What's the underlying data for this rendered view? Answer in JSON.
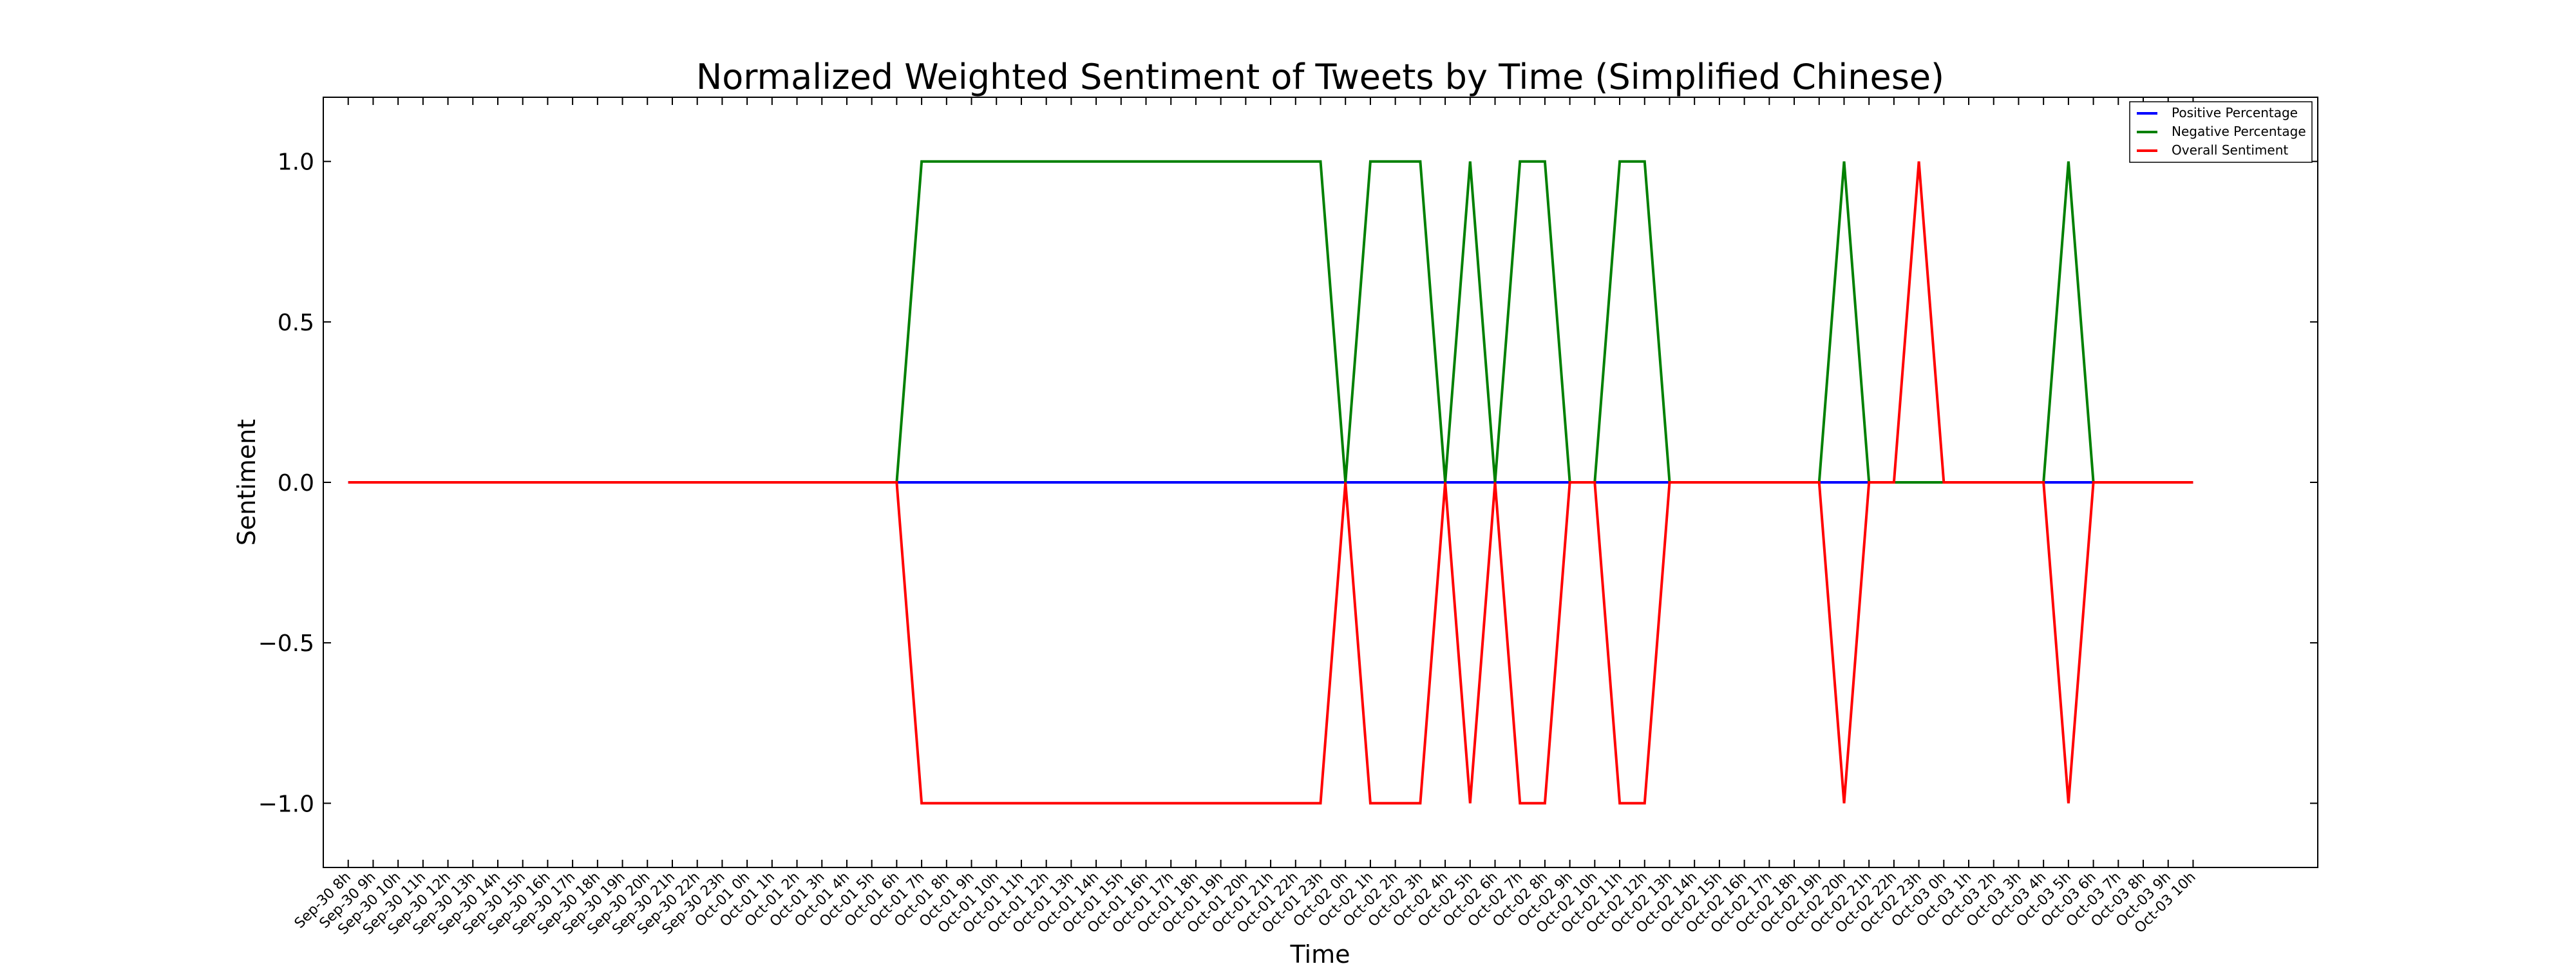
{
  "chart_data": {
    "type": "line",
    "title": "Normalized Weighted Sentiment of Tweets by Time (Simplified Chinese)",
    "xlabel": "Time",
    "ylabel": "Sentiment",
    "ylim": [
      -1.2,
      1.2
    ],
    "yticks": [
      -1.0,
      -0.5,
      0.0,
      0.5,
      1.0
    ],
    "ytick_labels": [
      "−1.0",
      "−0.5",
      "0.0",
      "0.5",
      "1.0"
    ],
    "xlim": [
      -1,
      79
    ],
    "grid": false,
    "legend_position": "top-right",
    "categories": [
      "Sep-30 8h",
      "Sep-30 9h",
      "Sep-30 10h",
      "Sep-30 11h",
      "Sep-30 12h",
      "Sep-30 13h",
      "Sep-30 14h",
      "Sep-30 15h",
      "Sep-30 16h",
      "Sep-30 17h",
      "Sep-30 18h",
      "Sep-30 19h",
      "Sep-30 20h",
      "Sep-30 21h",
      "Sep-30 22h",
      "Sep-30 23h",
      "Oct-01 0h",
      "Oct-01 1h",
      "Oct-01 2h",
      "Oct-01 3h",
      "Oct-01 4h",
      "Oct-01 5h",
      "Oct-01 6h",
      "Oct-01 7h",
      "Oct-01 8h",
      "Oct-01 9h",
      "Oct-01 10h",
      "Oct-01 11h",
      "Oct-01 12h",
      "Oct-01 13h",
      "Oct-01 14h",
      "Oct-01 15h",
      "Oct-01 16h",
      "Oct-01 17h",
      "Oct-01 18h",
      "Oct-01 19h",
      "Oct-01 20h",
      "Oct-01 21h",
      "Oct-01 22h",
      "Oct-01 23h",
      "Oct-02 0h",
      "Oct-02 1h",
      "Oct-02 2h",
      "Oct-02 3h",
      "Oct-02 4h",
      "Oct-02 5h",
      "Oct-02 6h",
      "Oct-02 7h",
      "Oct-02 8h",
      "Oct-02 9h",
      "Oct-02 10h",
      "Oct-02 11h",
      "Oct-02 12h",
      "Oct-02 13h",
      "Oct-02 14h",
      "Oct-02 15h",
      "Oct-02 16h",
      "Oct-02 17h",
      "Oct-02 18h",
      "Oct-02 19h",
      "Oct-02 20h",
      "Oct-02 21h",
      "Oct-02 22h",
      "Oct-02 23h",
      "Oct-03 0h",
      "Oct-03 1h",
      "Oct-03 2h",
      "Oct-03 3h",
      "Oct-03 4h",
      "Oct-03 5h",
      "Oct-03 6h",
      "Oct-03 7h",
      "Oct-03 8h",
      "Oct-03 9h",
      "Oct-03 10h"
    ],
    "series": [
      {
        "name": "Positive Percentage",
        "color": "#0000ff",
        "x": [
          0,
          74
        ],
        "values": [
          0,
          0
        ]
      },
      {
        "name": "Negative Percentage",
        "color": "#008000",
        "x": [
          22,
          23,
          39,
          40,
          41,
          43,
          44,
          45,
          46,
          47,
          48,
          49,
          50,
          51,
          52,
          53,
          59,
          60,
          61,
          62,
          63,
          64,
          68,
          69,
          70
        ],
        "values": [
          0,
          1,
          1,
          0,
          1,
          1,
          0,
          1,
          0,
          1,
          1,
          0,
          0,
          1,
          1,
          0,
          0,
          1,
          0,
          0,
          0,
          0,
          0,
          1,
          0
        ]
      },
      {
        "name": "Overall Sentiment",
        "color": "#ff0000",
        "x": [
          0,
          22,
          23,
          39,
          40,
          41,
          43,
          44,
          45,
          46,
          47,
          48,
          49,
          50,
          51,
          52,
          53,
          59,
          60,
          61,
          62,
          63,
          64,
          68,
          69,
          70,
          74
        ],
        "values": [
          0,
          0,
          -1,
          -1,
          0,
          -1,
          -1,
          0,
          -1,
          0,
          -1,
          -1,
          0,
          0,
          -1,
          -1,
          0,
          0,
          -1,
          0,
          0,
          1,
          0,
          0,
          -1,
          0,
          0
        ]
      }
    ]
  }
}
